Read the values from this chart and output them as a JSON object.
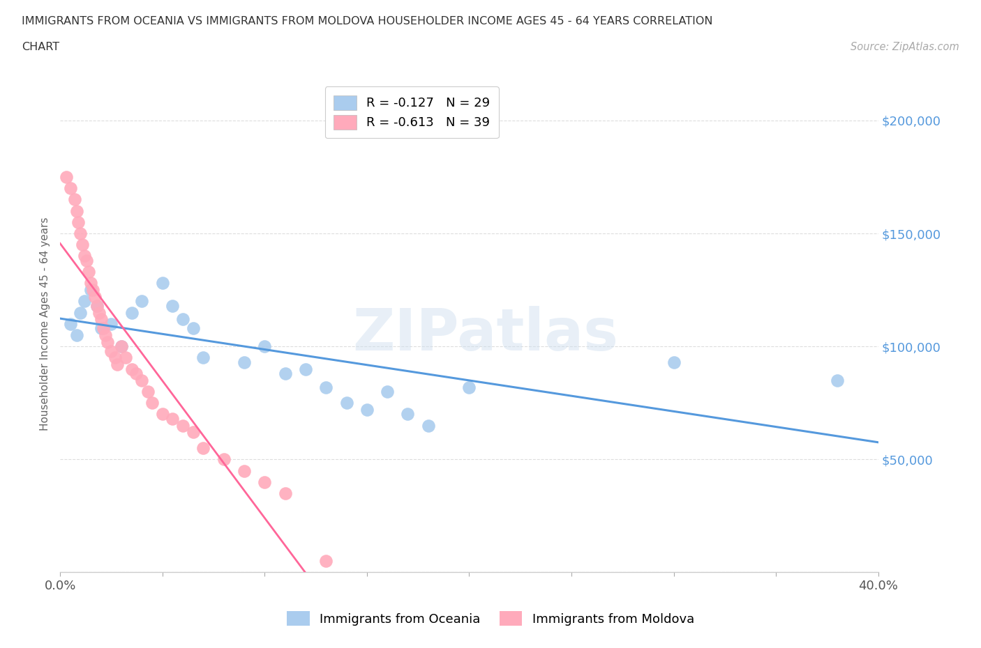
{
  "title_line1": "IMMIGRANTS FROM OCEANIA VS IMMIGRANTS FROM MOLDOVA HOUSEHOLDER INCOME AGES 45 - 64 YEARS CORRELATION",
  "title_line2": "CHART",
  "source": "Source: ZipAtlas.com",
  "ylabel": "Householder Income Ages 45 - 64 years",
  "xlim": [
    0.0,
    0.4
  ],
  "ylim": [
    0,
    220000
  ],
  "yticks": [
    0,
    50000,
    100000,
    150000,
    200000
  ],
  "ytick_labels": [
    "",
    "$50,000",
    "$100,000",
    "$150,000",
    "$200,000"
  ],
  "xticks": [
    0.0,
    0.05,
    0.1,
    0.15,
    0.2,
    0.25,
    0.3,
    0.35,
    0.4
  ],
  "xtick_labels": [
    "0.0%",
    "",
    "",
    "",
    "",
    "",
    "",
    "",
    "40.0%"
  ],
  "oceania_color": "#aaccee",
  "moldova_color": "#ffaabb",
  "oceania_line_color": "#5599dd",
  "moldova_line_color": "#ff6699",
  "oceania_R": -0.127,
  "oceania_N": 29,
  "moldova_R": -0.613,
  "moldova_N": 39,
  "legend_label_oceania": "Immigrants from Oceania",
  "legend_label_moldova": "Immigrants from Moldova",
  "background_color": "#ffffff",
  "oceania_x": [
    0.005,
    0.008,
    0.01,
    0.012,
    0.015,
    0.018,
    0.02,
    0.025,
    0.03,
    0.035,
    0.04,
    0.05,
    0.055,
    0.06,
    0.065,
    0.07,
    0.09,
    0.1,
    0.11,
    0.12,
    0.13,
    0.14,
    0.15,
    0.16,
    0.17,
    0.18,
    0.2,
    0.3,
    0.38
  ],
  "oceania_y": [
    110000,
    105000,
    115000,
    120000,
    125000,
    118000,
    108000,
    110000,
    100000,
    115000,
    120000,
    128000,
    118000,
    112000,
    108000,
    95000,
    93000,
    100000,
    88000,
    90000,
    82000,
    75000,
    72000,
    80000,
    70000,
    65000,
    82000,
    93000,
    85000
  ],
  "moldova_x": [
    0.003,
    0.005,
    0.007,
    0.008,
    0.009,
    0.01,
    0.011,
    0.012,
    0.013,
    0.014,
    0.015,
    0.016,
    0.017,
    0.018,
    0.019,
    0.02,
    0.021,
    0.022,
    0.023,
    0.025,
    0.027,
    0.028,
    0.03,
    0.032,
    0.035,
    0.037,
    0.04,
    0.043,
    0.045,
    0.05,
    0.055,
    0.06,
    0.065,
    0.07,
    0.08,
    0.09,
    0.1,
    0.11,
    0.13
  ],
  "moldova_y": [
    175000,
    170000,
    165000,
    160000,
    155000,
    150000,
    145000,
    140000,
    138000,
    133000,
    128000,
    125000,
    122000,
    118000,
    115000,
    112000,
    108000,
    105000,
    102000,
    98000,
    95000,
    92000,
    100000,
    95000,
    90000,
    88000,
    85000,
    80000,
    75000,
    70000,
    68000,
    65000,
    62000,
    55000,
    50000,
    45000,
    40000,
    35000,
    5000
  ],
  "watermark_text": "ZIPatlas",
  "grid_color": "#dddddd",
  "moldova_line_x_end": 0.27
}
